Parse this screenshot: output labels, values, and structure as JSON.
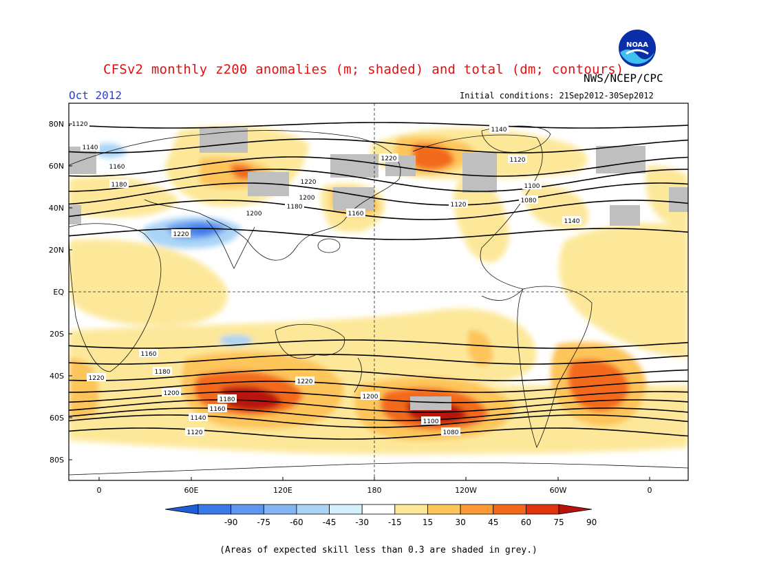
{
  "header": {
    "title": "CFSv2 monthly z200 anomalies (m; shaded) and total (dm; contours)",
    "agency": "NWS/NCEP/CPC",
    "month": "Oct 2012",
    "initial_conditions": "Initial conditions: 21Sep2012-30Sep2012",
    "logo_text": "NOAA"
  },
  "map": {
    "lat_labels": [
      "80N",
      "60N",
      "40N",
      "20N",
      "EQ",
      "20S",
      "40S",
      "60S",
      "80S"
    ],
    "lon_labels": [
      "0",
      "60E",
      "120E",
      "180",
      "120W",
      "60W",
      "0"
    ],
    "contour_labels": [
      "1120",
      "1140",
      "1160",
      "1180",
      "1200",
      "1220",
      "1220",
      "1220",
      "1200",
      "1180",
      "1160",
      "1140",
      "1120",
      "1100",
      "1080",
      "1120",
      "1140",
      "1160",
      "1180",
      "1200",
      "1220",
      "1220",
      "1200",
      "1180",
      "1160",
      "1140",
      "1120",
      "1100",
      "1080"
    ]
  },
  "colorbar": {
    "labels": [
      "-90",
      "-75",
      "-60",
      "-45",
      "-30",
      "-15",
      "15",
      "30",
      "45",
      "60",
      "75",
      "90"
    ],
    "colors": [
      "#1e5fd8",
      "#3a7ae6",
      "#5f96ee",
      "#84b4f2",
      "#aad4f6",
      "#d4f0fa",
      "#ffffff",
      "#fde89a",
      "#fdc55a",
      "#fb9a36",
      "#f36a1c",
      "#e0340e",
      "#b8120a"
    ]
  },
  "footnote": "(Areas of expected skill less than 0.3 are shaded in grey.)",
  "colors": {
    "title": "#e01010",
    "month": "#2b3fe0",
    "skill_grey": "#bfbfbf"
  }
}
